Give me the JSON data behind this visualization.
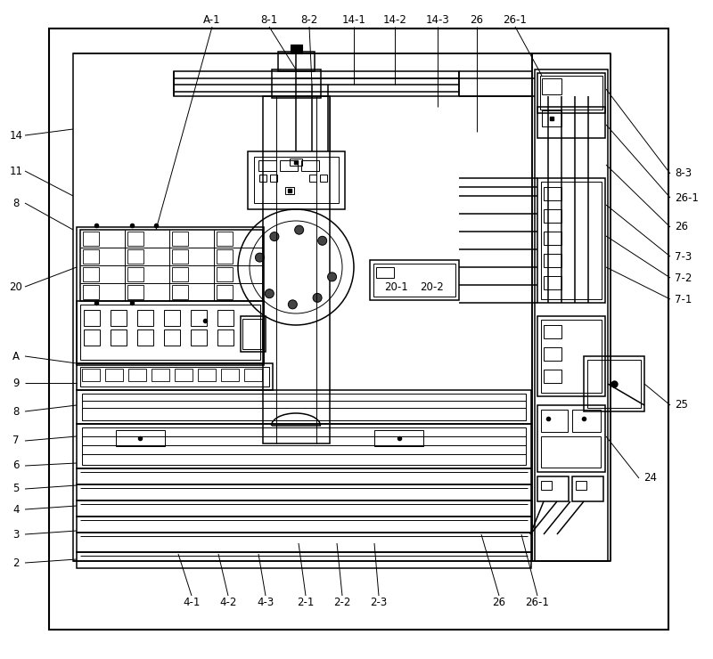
{
  "fig_w": 8.0,
  "fig_h": 7.4,
  "dpi": 100,
  "bg": "#ffffff",
  "lc": "#000000",
  "lw": 1.1,
  "tlw": 0.7,
  "top_labels": [
    [
      "A-1",
      238,
      22
    ],
    [
      "8-1",
      302,
      22
    ],
    [
      "8-2",
      347,
      22
    ],
    [
      "14-1",
      397,
      22
    ],
    [
      "14-2",
      443,
      22
    ],
    [
      "14-3",
      491,
      22
    ],
    [
      "26",
      535,
      22
    ],
    [
      "26-1",
      578,
      22
    ]
  ],
  "left_labels": [
    [
      "14",
      18,
      152
    ],
    [
      "11",
      18,
      192
    ],
    [
      "8",
      18,
      228
    ],
    [
      "20",
      18,
      322
    ],
    [
      "A",
      18,
      400
    ],
    [
      "9",
      18,
      430
    ],
    [
      "8",
      18,
      462
    ],
    [
      "7",
      18,
      495
    ],
    [
      "6",
      18,
      523
    ],
    [
      "5",
      18,
      549
    ],
    [
      "4",
      18,
      572
    ],
    [
      "3",
      18,
      600
    ],
    [
      "2",
      18,
      632
    ]
  ],
  "right_labels": [
    [
      "8-3",
      757,
      195
    ],
    [
      "26-1",
      757,
      222
    ],
    [
      "26",
      757,
      255
    ],
    [
      "7-3",
      757,
      288
    ],
    [
      "7-2",
      757,
      312
    ],
    [
      "7-1",
      757,
      336
    ],
    [
      "25",
      757,
      455
    ],
    [
      "24",
      722,
      537
    ]
  ],
  "bottom_labels": [
    [
      "4-1",
      215,
      677
    ],
    [
      "4-2",
      256,
      677
    ],
    [
      "4-3",
      298,
      677
    ],
    [
      "2-1",
      343,
      677
    ],
    [
      "2-2",
      384,
      677
    ],
    [
      "2-3",
      425,
      677
    ],
    [
      "26",
      560,
      677
    ],
    [
      "26-1",
      603,
      677
    ]
  ],
  "inner_labels": [
    [
      "20-1",
      444,
      322
    ],
    [
      "20-2",
      484,
      322
    ]
  ]
}
